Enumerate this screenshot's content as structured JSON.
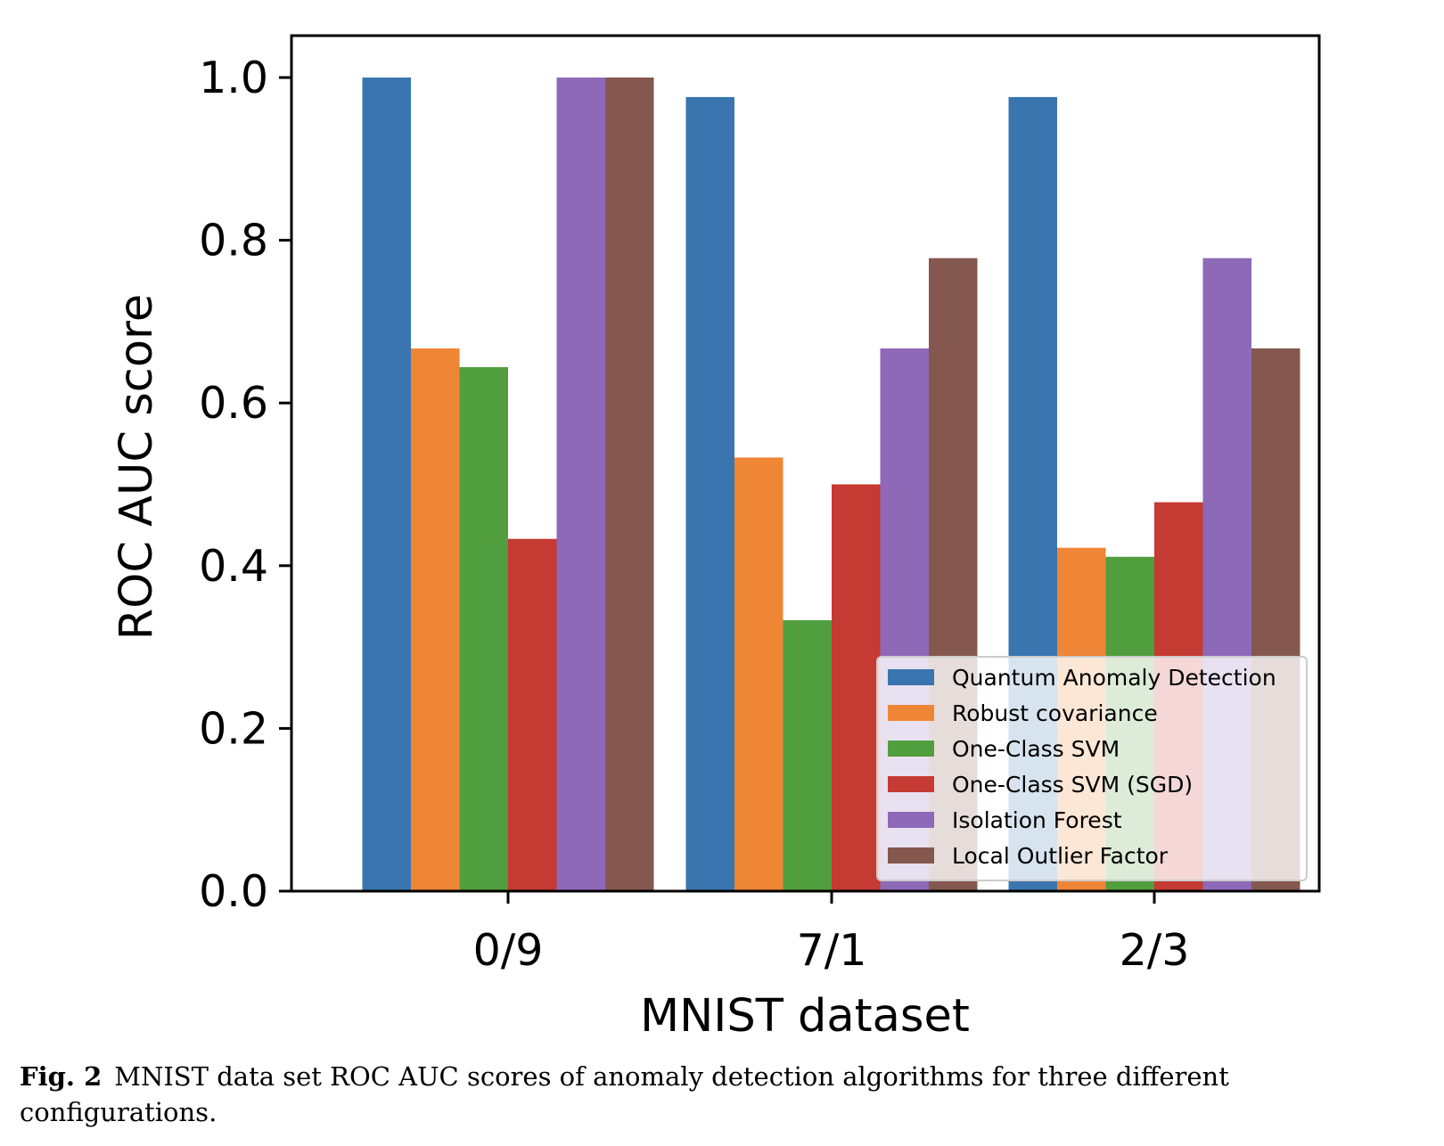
{
  "chart_data": {
    "type": "bar",
    "xlabel": "MNIST dataset",
    "ylabel": "ROC AUC score",
    "categories": [
      "0/9",
      "7/1",
      "2/3"
    ],
    "ylim": [
      0,
      1.05
    ],
    "yticks": [
      "0.0",
      "0.2",
      "0.4",
      "0.6",
      "0.8",
      "1.0"
    ],
    "legend_position": "lower-right",
    "series": [
      {
        "name": "Quantum Anomaly Detection",
        "color": "#3a75af",
        "values": [
          1.0,
          0.976,
          0.976
        ]
      },
      {
        "name": "Robust covariance",
        "color": "#ef8636",
        "values": [
          0.667,
          0.533,
          0.422
        ]
      },
      {
        "name": "One-Class SVM",
        "color": "#519e3e",
        "values": [
          0.644,
          0.333,
          0.411
        ]
      },
      {
        "name": "One-Class SVM (SGD)",
        "color": "#c53a32",
        "values": [
          0.433,
          0.5,
          0.478
        ]
      },
      {
        "name": "Isolation Forest",
        "color": "#8d69b8",
        "values": [
          1.0,
          0.667,
          0.778
        ]
      },
      {
        "name": "Local Outlier Factor",
        "color": "#84584e",
        "values": [
          1.0,
          0.778,
          0.667
        ]
      }
    ]
  },
  "caption": {
    "label": "Fig. 2",
    "text": "MNIST data set ROC AUC scores of anomaly detection algorithms for three different configurations."
  }
}
